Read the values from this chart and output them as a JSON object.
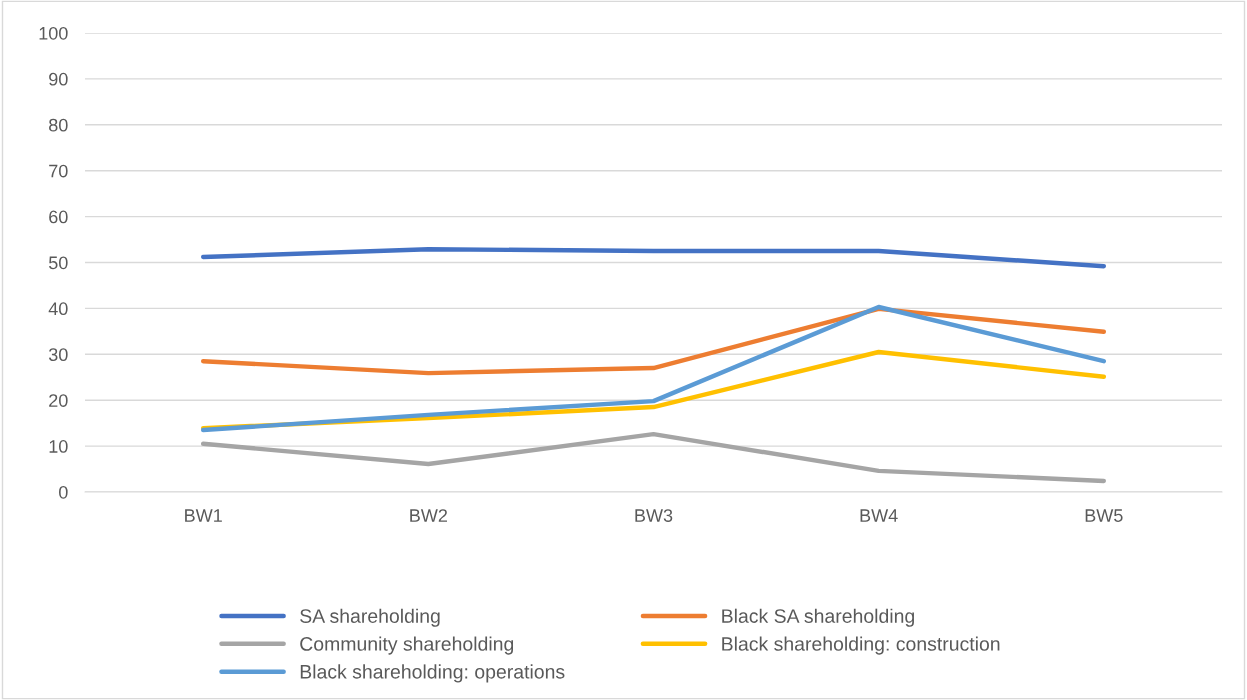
{
  "chart_data": {
    "type": "line",
    "categories": [
      "BW1",
      "BW2",
      "BW3",
      "BW4",
      "BW5"
    ],
    "series": [
      {
        "name": "SA shareholding",
        "color": "#4472c4",
        "values": [
          51.2,
          52.9,
          52.5,
          52.5,
          49.2
        ]
      },
      {
        "name": "Black SA shareholding",
        "color": "#ed7d31",
        "values": [
          28.5,
          25.9,
          27.0,
          39.9,
          34.9
        ]
      },
      {
        "name": "Community shareholding",
        "color": "#a5a5a5",
        "values": [
          10.5,
          6.1,
          12.6,
          4.6,
          2.4
        ]
      },
      {
        "name": "Black shareholding: construction",
        "color": "#ffc000",
        "values": [
          13.9,
          16.1,
          18.5,
          30.5,
          25.1
        ]
      },
      {
        "name": "Black shareholding: operations",
        "color": "#5b9bd5",
        "values": [
          13.5,
          16.8,
          19.8,
          40.3,
          28.5
        ]
      }
    ],
    "ylim": [
      0,
      100
    ],
    "yticks": [
      0,
      10,
      20,
      30,
      40,
      50,
      60,
      70,
      80,
      90,
      100
    ],
    "grid": "y",
    "legend": "bottom",
    "marker": "none",
    "line_style": "solid"
  }
}
